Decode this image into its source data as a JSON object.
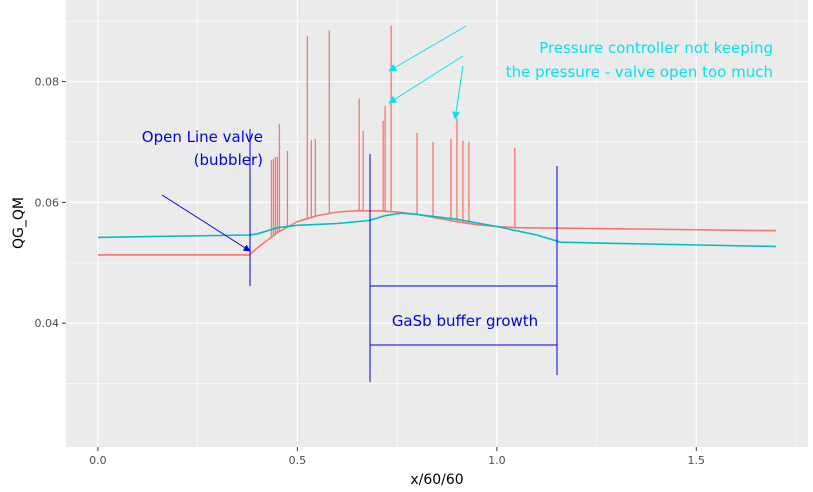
{
  "chart_data": {
    "type": "line",
    "xlabel": "x/60/60",
    "ylabel": "QG_QM",
    "xlim": [
      -0.08,
      1.78
    ],
    "ylim": [
      0.0195,
      0.0935
    ],
    "x_ticks": [
      "0.0",
      "0.5",
      "1.0",
      "1.5"
    ],
    "x_tick_values": [
      0.0,
      0.5,
      1.0,
      1.5
    ],
    "y_ticks": [
      "0.04",
      "0.06",
      "0.08"
    ],
    "y_tick_values": [
      0.04,
      0.06,
      0.08
    ],
    "grid": true,
    "legend": "none",
    "panel_background": "#ebebeb",
    "grid_color": "#ffffff",
    "series": [
      {
        "color": "#f8766d",
        "points": [
          [
            0.0,
            0.0513
          ],
          [
            0.38,
            0.0513
          ],
          [
            0.4,
            0.0525
          ],
          [
            0.45,
            0.055
          ],
          [
            0.5,
            0.0568
          ],
          [
            0.55,
            0.0578
          ],
          [
            0.6,
            0.0584
          ],
          [
            0.65,
            0.0586
          ],
          [
            0.7,
            0.0586
          ],
          [
            0.75,
            0.0584
          ],
          [
            0.8,
            0.058
          ],
          [
            0.85,
            0.0574
          ],
          [
            0.9,
            0.0568
          ],
          [
            0.95,
            0.0563
          ],
          [
            1.0,
            0.056
          ],
          [
            1.05,
            0.0558
          ],
          [
            1.2,
            0.0557
          ],
          [
            1.7,
            0.0553
          ]
        ],
        "spikes": [
          [
            0.435,
            0.067
          ],
          [
            0.44,
            0.0672
          ],
          [
            0.445,
            0.0675
          ],
          [
            0.45,
            0.0675
          ],
          [
            0.455,
            0.073
          ],
          [
            0.475,
            0.0685
          ],
          [
            0.525,
            0.0875
          ],
          [
            0.535,
            0.0703
          ],
          [
            0.545,
            0.0705
          ],
          [
            0.58,
            0.0885
          ],
          [
            0.655,
            0.0772
          ],
          [
            0.665,
            0.0718
          ],
          [
            0.715,
            0.0735
          ],
          [
            0.72,
            0.076
          ],
          [
            0.735,
            0.0893
          ],
          [
            0.8,
            0.0715
          ],
          [
            0.84,
            0.07
          ],
          [
            0.885,
            0.0705
          ],
          [
            0.9,
            0.074
          ],
          [
            0.915,
            0.0702
          ],
          [
            0.93,
            0.07
          ],
          [
            1.045,
            0.069
          ]
        ]
      },
      {
        "color": "#00bfc4",
        "points": [
          [
            0.0,
            0.0542
          ],
          [
            0.38,
            0.0546
          ],
          [
            0.4,
            0.0548
          ],
          [
            0.45,
            0.0558
          ],
          [
            0.5,
            0.0562
          ],
          [
            0.6,
            0.0565
          ],
          [
            0.68,
            0.057
          ],
          [
            0.72,
            0.0578
          ],
          [
            0.76,
            0.0582
          ],
          [
            0.8,
            0.058
          ],
          [
            0.9,
            0.0572
          ],
          [
            1.0,
            0.056
          ],
          [
            1.1,
            0.0546
          ],
          [
            1.16,
            0.0534
          ],
          [
            1.3,
            0.0532
          ],
          [
            1.7,
            0.0527
          ]
        ]
      }
    ],
    "annotations": [
      {
        "id": "pressure",
        "color": "#00e5ee",
        "lines": [
          "Pressure controller not keeping",
          "the pressure - valve open too much"
        ]
      },
      {
        "id": "open-line",
        "color": "#0000e6",
        "lines": [
          "Open Line valve",
          "(bubbler)"
        ]
      },
      {
        "id": "gasb",
        "color": "#0000e6",
        "lines": [
          "GaSb buffer growth"
        ]
      }
    ]
  }
}
